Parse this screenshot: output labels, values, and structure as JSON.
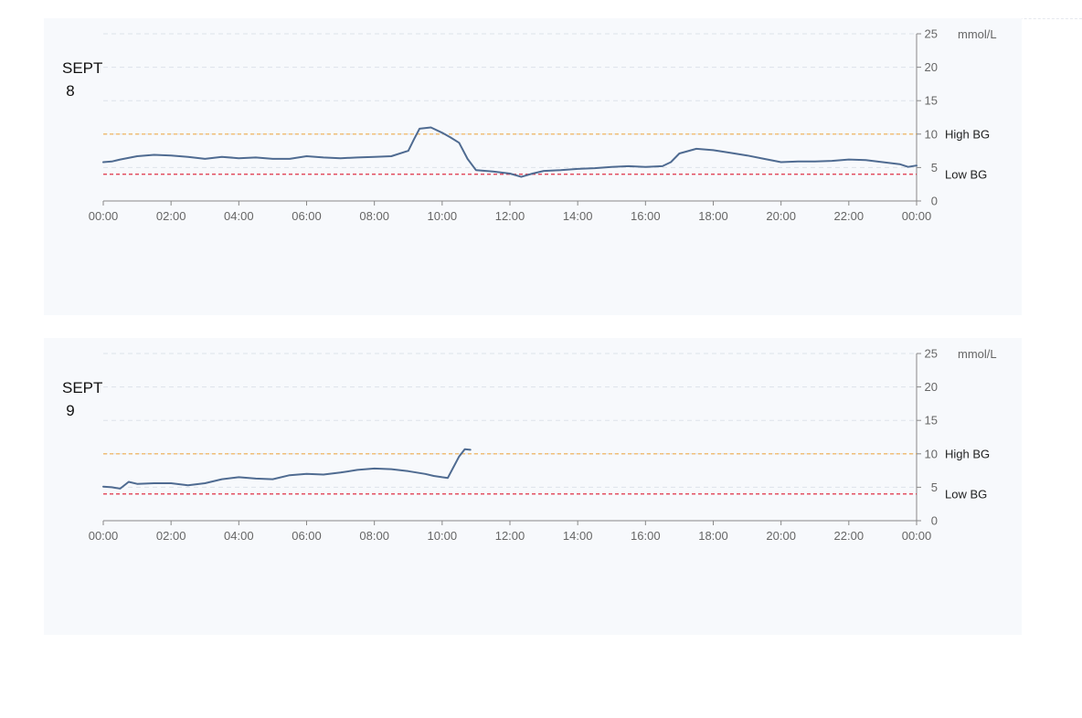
{
  "chart_data": [
    {
      "type": "line",
      "title": "",
      "date_label": {
        "month": "SEPT",
        "day": "8"
      },
      "xlabel": "",
      "ylabel": "",
      "unit_label": "mmol/L",
      "xlim": [
        "00:00",
        "24:00"
      ],
      "ylim": [
        0,
        25
      ],
      "x_ticks": [
        "00:00",
        "02:00",
        "04:00",
        "06:00",
        "08:00",
        "10:00",
        "12:00",
        "14:00",
        "16:00",
        "18:00",
        "20:00",
        "22:00",
        "00:00"
      ],
      "y_ticks": [
        0,
        5,
        10,
        15,
        20,
        25
      ],
      "grid": true,
      "reference_lines": [
        {
          "label": "High BG",
          "value": 10,
          "color": "#f0ad4e"
        },
        {
          "label": "Low BG",
          "value": 4,
          "color": "#e03146"
        }
      ],
      "line_color": "#4f6b91",
      "series": [
        {
          "x": [
            "00:00",
            "00:15",
            "00:30",
            "01:00",
            "01:30",
            "02:00",
            "02:30",
            "03:00",
            "03:30",
            "04:00",
            "04:30",
            "05:00",
            "05:30",
            "06:00",
            "06:30",
            "07:00",
            "07:30",
            "08:00",
            "08:30",
            "09:00",
            "09:10",
            "09:20",
            "09:40",
            "10:00",
            "10:15",
            "10:30",
            "10:45",
            "11:00",
            "11:30",
            "12:00",
            "12:20",
            "12:40",
            "13:00",
            "13:30",
            "14:00",
            "14:30",
            "15:00",
            "15:30",
            "16:00",
            "16:30",
            "16:45",
            "17:00",
            "17:30",
            "18:00",
            "18:30",
            "19:00",
            "19:30",
            "20:00",
            "20:30",
            "21:00",
            "21:30",
            "22:00",
            "22:30",
            "23:00",
            "23:30",
            "23:45",
            "24:00"
          ],
          "y": [
            5.8,
            5.9,
            6.2,
            6.7,
            6.9,
            6.8,
            6.6,
            6.3,
            6.6,
            6.4,
            6.5,
            6.3,
            6.3,
            6.7,
            6.5,
            6.4,
            6.5,
            6.6,
            6.7,
            7.5,
            9.2,
            10.8,
            11.0,
            10.2,
            9.5,
            8.7,
            6.3,
            4.6,
            4.4,
            4.1,
            3.6,
            4.1,
            4.5,
            4.6,
            4.8,
            4.9,
            5.1,
            5.2,
            5.1,
            5.2,
            5.8,
            7.1,
            7.8,
            7.6,
            7.2,
            6.8,
            6.3,
            5.8,
            5.9,
            5.9,
            6.0,
            6.2,
            6.1,
            5.8,
            5.5,
            5.1,
            5.3
          ]
        }
      ]
    },
    {
      "type": "line",
      "title": "",
      "date_label": {
        "month": "SEPT",
        "day": "9"
      },
      "xlabel": "",
      "ylabel": "",
      "unit_label": "mmol/L",
      "xlim": [
        "00:00",
        "24:00"
      ],
      "ylim": [
        0,
        25
      ],
      "x_ticks": [
        "00:00",
        "02:00",
        "04:00",
        "06:00",
        "08:00",
        "10:00",
        "12:00",
        "14:00",
        "16:00",
        "18:00",
        "20:00",
        "22:00",
        "00:00"
      ],
      "y_ticks": [
        0,
        5,
        10,
        15,
        20,
        25
      ],
      "grid": true,
      "reference_lines": [
        {
          "label": "High BG",
          "value": 10,
          "color": "#f0ad4e"
        },
        {
          "label": "Low BG",
          "value": 4,
          "color": "#e03146"
        }
      ],
      "line_color": "#4f6b91",
      "series": [
        {
          "x": [
            "00:00",
            "00:15",
            "00:30",
            "00:45",
            "01:00",
            "01:30",
            "02:00",
            "02:30",
            "03:00",
            "03:30",
            "04:00",
            "04:30",
            "05:00",
            "05:30",
            "06:00",
            "06:30",
            "07:00",
            "07:30",
            "08:00",
            "08:30",
            "09:00",
            "09:30",
            "09:45",
            "10:00",
            "10:10",
            "10:20",
            "10:30",
            "10:40",
            "10:50"
          ],
          "y": [
            5.1,
            5.0,
            4.8,
            5.8,
            5.5,
            5.6,
            5.6,
            5.3,
            5.6,
            6.2,
            6.5,
            6.3,
            6.2,
            6.8,
            7.0,
            6.9,
            7.2,
            7.6,
            7.8,
            7.7,
            7.4,
            7.0,
            6.7,
            6.5,
            6.4,
            8.0,
            9.6,
            10.7,
            10.6
          ]
        }
      ]
    }
  ]
}
